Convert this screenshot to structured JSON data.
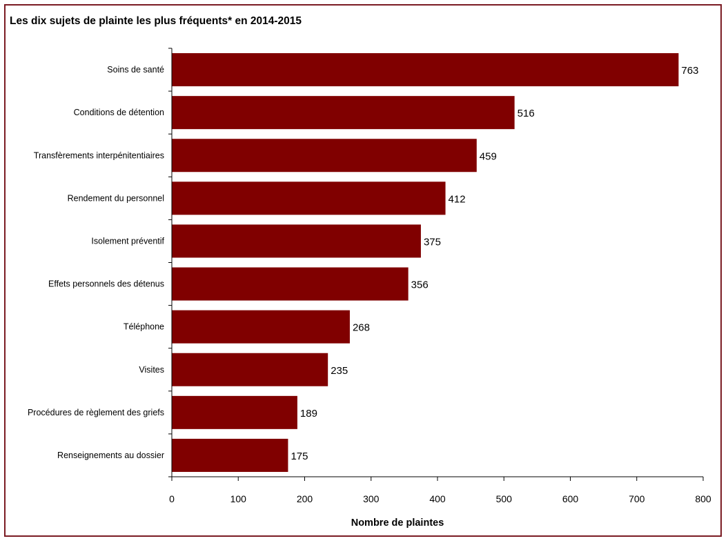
{
  "chart_data": {
    "type": "bar",
    "orientation": "horizontal",
    "title": "Les dix sujets de plainte les plus fréquents* en 2014-2015",
    "xlabel": "Nombre de plaintes",
    "ylabel": "",
    "categories": [
      "Soins de santé",
      "Conditions de détention",
      "Transfèrements interpénitentiaires",
      "Rendement du personnel",
      "Isolement préventif",
      "Effets personnels des détenus",
      "Téléphone",
      "Visites",
      "Procédures de règlement des griefs",
      "Renseignements au dossier"
    ],
    "values": [
      763,
      516,
      459,
      412,
      375,
      356,
      268,
      235,
      189,
      175
    ],
    "xlim": [
      0,
      800
    ],
    "xticks": [
      0,
      100,
      200,
      300,
      400,
      500,
      600,
      700,
      800
    ],
    "grid": false,
    "legend": "none",
    "bar_color": "#800000",
    "frame_color": "#7a1a22"
  }
}
